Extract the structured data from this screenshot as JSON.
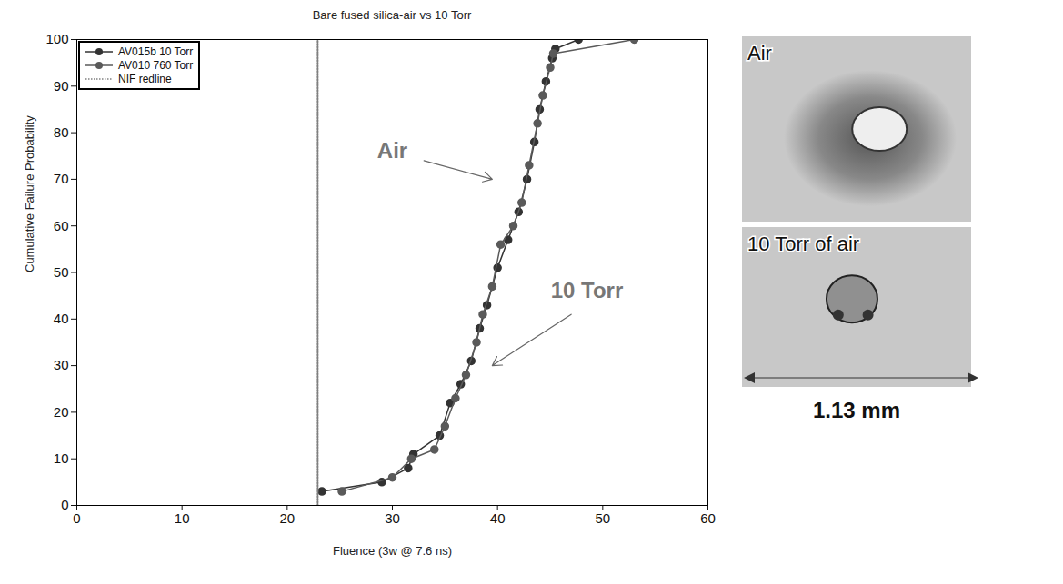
{
  "chart_data": {
    "type": "line",
    "title": "Bare fused silica-air vs 10 Torr",
    "x_label": "Fluence (3w @ 7.6 ns)",
    "y_label": "Cumulative Failure Probability",
    "xlim": [
      0,
      60
    ],
    "xticks": [
      0,
      10,
      20,
      30,
      40,
      50,
      60
    ],
    "ylim": [
      0,
      100
    ],
    "yticks": [
      0,
      10,
      20,
      30,
      40,
      50,
      60,
      70,
      80,
      90,
      100
    ],
    "grid": false,
    "legend": "top-left",
    "series": [
      {
        "name": "AV015b 10 Torr",
        "color": "#333333",
        "marker": "circle",
        "line_style": "solid",
        "x": [
          23.3,
          29,
          31.5,
          32,
          34.5,
          35.5,
          36.5,
          37.5,
          38.3,
          39,
          40,
          41,
          42,
          42.8,
          43.5,
          44,
          44.6,
          45.2,
          45.5,
          47.7
        ],
        "values": [
          3,
          5,
          8,
          11,
          15,
          22,
          26,
          31,
          38,
          43,
          51,
          57,
          63,
          70,
          78,
          85,
          91,
          96,
          98,
          100
        ]
      },
      {
        "name": "AV010 760 Torr",
        "color": "#5a5a5a",
        "marker": "circle",
        "line_style": "solid",
        "x": [
          25.2,
          30,
          31.8,
          34,
          35,
          36,
          37,
          38,
          38.6,
          39.5,
          40.3,
          41.5,
          42.3,
          43,
          43.8,
          44.3,
          45,
          45.3,
          53
        ],
        "values": [
          3,
          6,
          10,
          12,
          17,
          23,
          28,
          35,
          41,
          47,
          56,
          60,
          65,
          73,
          82,
          88,
          94,
          97,
          100
        ]
      },
      {
        "name": "NIF redline",
        "color": "#808080",
        "marker": "none",
        "line_style": "dotted",
        "x": [
          22.9,
          22.9
        ],
        "values": [
          0,
          100
        ]
      }
    ],
    "annotations": [
      {
        "text": "Air",
        "x": 30,
        "y": 76,
        "arrow": [
          [
            33,
            74
          ],
          [
            39.5,
            70
          ]
        ]
      },
      {
        "text": "10 Torr",
        "x": 48.5,
        "y": 46,
        "arrow": [
          [
            47,
            41
          ],
          [
            39.5,
            30
          ]
        ]
      }
    ]
  },
  "images": {
    "labels": [
      "Air",
      "10 Torr of air"
    ],
    "scale_bar": "1.13 mm"
  }
}
